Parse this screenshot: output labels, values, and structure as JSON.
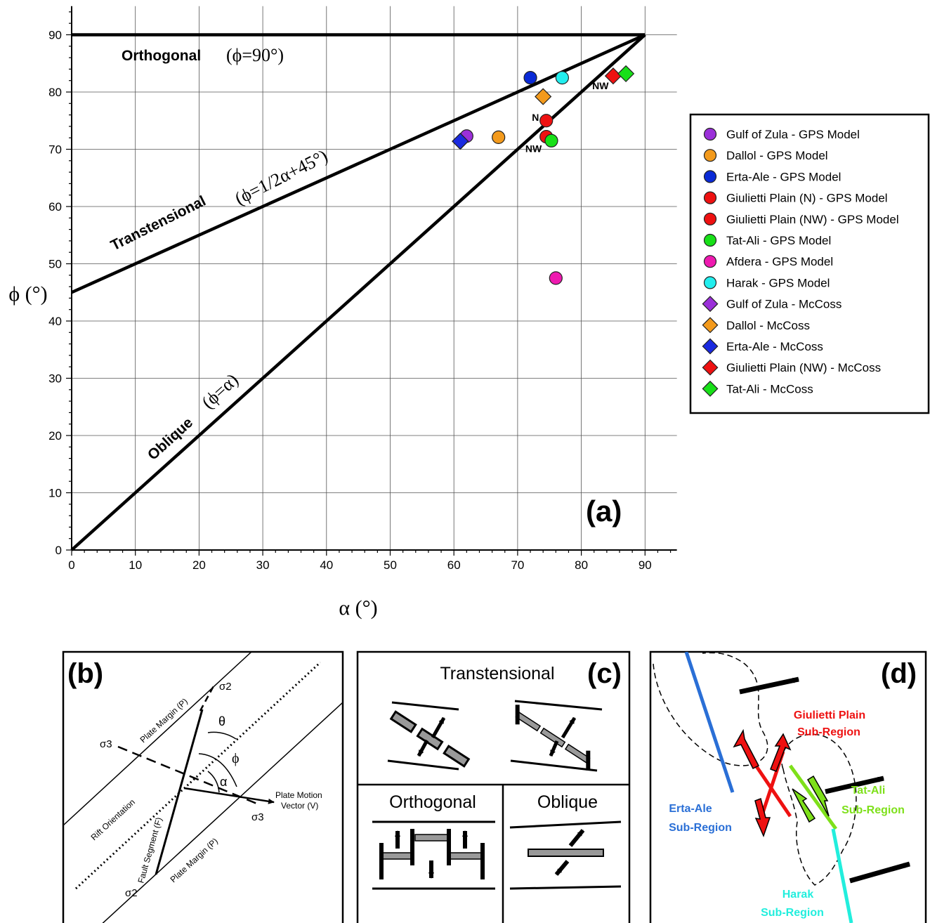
{
  "chart_data": {
    "type": "scatter",
    "xlabel": "α (°)",
    "ylabel": "ϕ (°)",
    "xlim": [
      0,
      95
    ],
    "ylim": [
      0,
      95
    ],
    "xticks": [
      0,
      10,
      20,
      30,
      40,
      50,
      60,
      70,
      80,
      90
    ],
    "yticks": [
      0,
      10,
      20,
      30,
      40,
      50,
      60,
      70,
      80,
      90
    ],
    "grid": true,
    "panel_label": "(a)",
    "lines": [
      {
        "label": "Orthogonal",
        "eq": "(ϕ=90°)",
        "points": [
          [
            0,
            90
          ],
          [
            90,
            90
          ]
        ]
      },
      {
        "label": "Transtensional",
        "eq": "(ϕ=1/2α+45°)",
        "points": [
          [
            0,
            45
          ],
          [
            90,
            90
          ]
        ]
      },
      {
        "label": "Oblique",
        "eq": "(ϕ=α)",
        "points": [
          [
            0,
            0
          ],
          [
            90,
            90
          ]
        ]
      }
    ],
    "point_labels": [
      {
        "text": "N",
        "x": 72.8,
        "y": 75
      },
      {
        "text": "NW",
        "x": 72.5,
        "y": 69.5
      },
      {
        "text": "NW",
        "x": 83,
        "y": 80.5
      }
    ],
    "legend_position": "right",
    "series": [
      {
        "name": "Gulf of Zula - GPS Model",
        "marker": "circle",
        "color": "#9b30d9",
        "points": [
          [
            62,
            72.3
          ]
        ]
      },
      {
        "name": "Dallol - GPS Model",
        "marker": "circle",
        "color": "#f39a1c",
        "points": [
          [
            67,
            72.1
          ]
        ]
      },
      {
        "name": "Erta-Ale - GPS Model",
        "marker": "circle",
        "color": "#0a2ad6",
        "points": [
          [
            72,
            82.5
          ]
        ]
      },
      {
        "name": "Giulietti Plain (N) - GPS Model",
        "marker": "circle",
        "color": "#ee1111",
        "points": [
          [
            74.5,
            75
          ]
        ]
      },
      {
        "name": "Giulietti Plain (NW) - GPS Model",
        "marker": "circle",
        "color": "#ee1111",
        "points": [
          [
            74.5,
            72.2
          ]
        ]
      },
      {
        "name": "Tat-Ali - GPS Model",
        "marker": "circle",
        "color": "#18e018",
        "points": [
          [
            75.3,
            71.5
          ]
        ]
      },
      {
        "name": "Afdera - GPS Model",
        "marker": "circle",
        "color": "#ee1ab0",
        "points": [
          [
            76,
            47.5
          ]
        ]
      },
      {
        "name": "Harak - GPS Model",
        "marker": "circle",
        "color": "#22eeee",
        "points": [
          [
            77,
            82.5
          ]
        ]
      },
      {
        "name": "Gulf of Zula - McCoss",
        "marker": "diamond",
        "color": "#9b30d9",
        "points": [
          [
            61,
            71.4
          ]
        ]
      },
      {
        "name": "Dallol - McCoss",
        "marker": "diamond",
        "color": "#f39a1c",
        "points": [
          [
            74,
            79.2
          ]
        ]
      },
      {
        "name": "Erta-Ale - McCoss",
        "marker": "diamond",
        "color": "#1a2ae0",
        "points": [
          [
            61,
            71.4
          ]
        ]
      },
      {
        "name": "Giulietti Plain (NW) - McCoss",
        "marker": "diamond",
        "color": "#ee1111",
        "points": [
          [
            85,
            82.8
          ]
        ]
      },
      {
        "name": "Tat-Ali - McCoss",
        "marker": "diamond",
        "color": "#18e018",
        "points": [
          [
            87,
            83.2
          ]
        ]
      }
    ]
  },
  "panel_b": {
    "label": "(b)",
    "plate_margin_top": "Plate Margin (P)",
    "plate_margin_bottom": "Plate Margin (P)",
    "rift_orientation": "Rift Orientation",
    "fault_segment": "Fault Segment (F)",
    "plate_motion_1": "Plate Motion",
    "plate_motion_2": "Vector (V)",
    "sigma2_top": "σ2",
    "sigma2_bottom": "σ2",
    "sigma3_left": "σ3",
    "sigma3_right": "σ3",
    "theta": "θ",
    "phi": "ϕ",
    "alpha": "α"
  },
  "panel_c": {
    "label": "(c)",
    "transtensional": "Transtensional",
    "orthogonal": "Orthogonal",
    "oblique": "Oblique"
  },
  "panel_d": {
    "label": "(d)",
    "giulietti_1": "Giulietti Plain",
    "giulietti_2": "Sub-Region",
    "ertaale_1": "Erta-Ale",
    "ertaale_2": "Sub-Region",
    "tatali_1": "Tat-Ali",
    "tatali_2": "Sub-Region",
    "harak_1": "Harak",
    "harak_2": "Sub-Region",
    "color_giulietti": "#ee1111",
    "color_ertaale": "#2a6fd6",
    "color_tatali": "#7ee01a",
    "color_harak": "#22eedd"
  }
}
